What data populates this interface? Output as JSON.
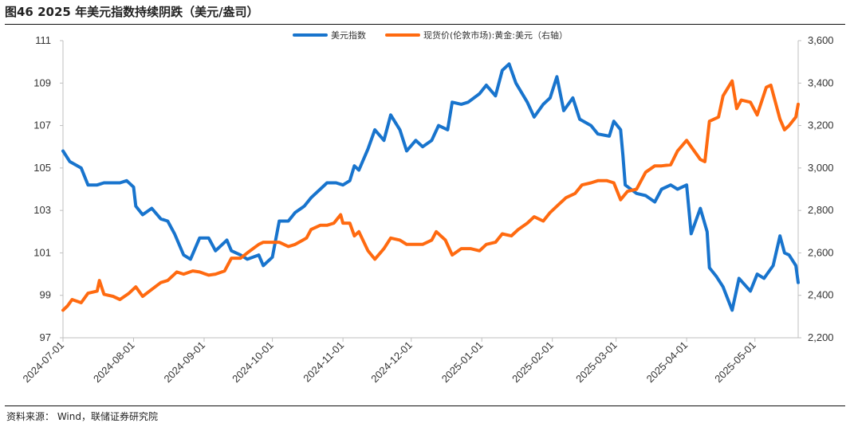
{
  "figure": {
    "title": "图46 2025 年美元指数持续阴跌（美元/盎司）",
    "source": "资料来源：  Wind，联储证券研究院"
  },
  "chart_data": {
    "type": "line",
    "title": "图46 2025 年美元指数持续阴跌（美元/盎司）",
    "legend_position": "top-center",
    "x_range": [
      "2024-07-01",
      "2025-05-20"
    ],
    "x_ticks": [
      "2024-07-01",
      "2024-08-01",
      "2024-09-01",
      "2024-10-01",
      "2024-11-01",
      "2024-12-01",
      "2025-01-01",
      "2025-02-01",
      "2025-03-01",
      "2025-04-01",
      "2025-05-01"
    ],
    "y_left": {
      "min": 97,
      "max": 111,
      "ticks": [
        "97",
        "99",
        "101",
        "103",
        "105",
        "107",
        "109",
        "111"
      ]
    },
    "y_right": {
      "min": 2200,
      "max": 3600,
      "ticks": [
        "2,200",
        "2,400",
        "2,600",
        "2,800",
        "3,000",
        "3,200",
        "3,400",
        "3,600"
      ]
    },
    "series": [
      {
        "name": "美元指数",
        "axis": "left",
        "color": "#1874CD",
        "points": [
          [
            "2024-07-01",
            105.8
          ],
          [
            "2024-07-04",
            105.3
          ],
          [
            "2024-07-09",
            105.0
          ],
          [
            "2024-07-12",
            104.2
          ],
          [
            "2024-07-16",
            104.2
          ],
          [
            "2024-07-19",
            104.3
          ],
          [
            "2024-07-22",
            104.3
          ],
          [
            "2024-07-26",
            104.3
          ],
          [
            "2024-07-29",
            104.4
          ],
          [
            "2024-08-01",
            104.1
          ],
          [
            "2024-08-02",
            103.2
          ],
          [
            "2024-08-05",
            102.8
          ],
          [
            "2024-08-09",
            103.1
          ],
          [
            "2024-08-13",
            102.6
          ],
          [
            "2024-08-16",
            102.5
          ],
          [
            "2024-08-19",
            101.9
          ],
          [
            "2024-08-23",
            100.9
          ],
          [
            "2024-08-26",
            100.7
          ],
          [
            "2024-08-30",
            101.7
          ],
          [
            "2024-09-03",
            101.7
          ],
          [
            "2024-09-06",
            101.1
          ],
          [
            "2024-09-11",
            101.6
          ],
          [
            "2024-09-13",
            101.1
          ],
          [
            "2024-09-17",
            100.9
          ],
          [
            "2024-09-20",
            100.7
          ],
          [
            "2024-09-25",
            100.9
          ],
          [
            "2024-09-27",
            100.4
          ],
          [
            "2024-10-01",
            100.8
          ],
          [
            "2024-10-04",
            102.5
          ],
          [
            "2024-10-08",
            102.5
          ],
          [
            "2024-10-11",
            102.9
          ],
          [
            "2024-10-15",
            103.2
          ],
          [
            "2024-10-18",
            103.6
          ],
          [
            "2024-10-22",
            104.0
          ],
          [
            "2024-10-25",
            104.3
          ],
          [
            "2024-10-29",
            104.3
          ],
          [
            "2024-11-01",
            104.2
          ],
          [
            "2024-11-04",
            104.4
          ],
          [
            "2024-11-06",
            105.1
          ],
          [
            "2024-11-08",
            104.9
          ],
          [
            "2024-11-12",
            105.9
          ],
          [
            "2024-11-15",
            106.8
          ],
          [
            "2024-11-19",
            106.3
          ],
          [
            "2024-11-22",
            107.5
          ],
          [
            "2024-11-26",
            106.8
          ],
          [
            "2024-11-29",
            105.8
          ],
          [
            "2024-12-03",
            106.3
          ],
          [
            "2024-12-06",
            106.0
          ],
          [
            "2024-12-10",
            106.3
          ],
          [
            "2024-12-13",
            107.0
          ],
          [
            "2024-12-17",
            106.8
          ],
          [
            "2024-12-19",
            108.1
          ],
          [
            "2024-12-23",
            108.0
          ],
          [
            "2024-12-26",
            108.1
          ],
          [
            "2024-12-31",
            108.5
          ],
          [
            "2025-01-03",
            108.9
          ],
          [
            "2025-01-07",
            108.4
          ],
          [
            "2025-01-10",
            109.6
          ],
          [
            "2025-01-13",
            109.9
          ],
          [
            "2025-01-16",
            109.0
          ],
          [
            "2025-01-21",
            108.1
          ],
          [
            "2025-01-24",
            107.4
          ],
          [
            "2025-01-28",
            108.0
          ],
          [
            "2025-01-31",
            108.3
          ],
          [
            "2025-02-03",
            109.3
          ],
          [
            "2025-02-06",
            107.7
          ],
          [
            "2025-02-10",
            108.3
          ],
          [
            "2025-02-13",
            107.3
          ],
          [
            "2025-02-18",
            107.0
          ],
          [
            "2025-02-21",
            106.6
          ],
          [
            "2025-02-26",
            106.5
          ],
          [
            "2025-02-28",
            107.2
          ],
          [
            "2025-03-03",
            106.8
          ],
          [
            "2025-03-04",
            105.6
          ],
          [
            "2025-03-05",
            104.2
          ],
          [
            "2025-03-10",
            103.8
          ],
          [
            "2025-03-14",
            103.7
          ],
          [
            "2025-03-18",
            103.4
          ],
          [
            "2025-03-21",
            104.0
          ],
          [
            "2025-03-25",
            104.2
          ],
          [
            "2025-03-28",
            104.0
          ],
          [
            "2025-04-01",
            104.2
          ],
          [
            "2025-04-03",
            101.9
          ],
          [
            "2025-04-07",
            103.1
          ],
          [
            "2025-04-10",
            102.0
          ],
          [
            "2025-04-11",
            100.3
          ],
          [
            "2025-04-14",
            99.9
          ],
          [
            "2025-04-17",
            99.4
          ],
          [
            "2025-04-21",
            98.3
          ],
          [
            "2025-04-24",
            99.8
          ],
          [
            "2025-04-29",
            99.2
          ],
          [
            "2025-05-02",
            100.0
          ],
          [
            "2025-05-05",
            99.8
          ],
          [
            "2025-05-09",
            100.4
          ],
          [
            "2025-05-12",
            101.8
          ],
          [
            "2025-05-14",
            101.0
          ],
          [
            "2025-05-16",
            100.9
          ],
          [
            "2025-05-19",
            100.4
          ],
          [
            "2025-05-20",
            99.6
          ]
        ]
      },
      {
        "name": "现货价(伦敦市场):黄金:美元（右轴）",
        "axis": "right",
        "color": "#FF6A10",
        "points": [
          [
            "2024-07-01",
            2330
          ],
          [
            "2024-07-03",
            2350
          ],
          [
            "2024-07-05",
            2380
          ],
          [
            "2024-07-09",
            2365
          ],
          [
            "2024-07-12",
            2410
          ],
          [
            "2024-07-16",
            2420
          ],
          [
            "2024-07-17",
            2470
          ],
          [
            "2024-07-19",
            2405
          ],
          [
            "2024-07-23",
            2395
          ],
          [
            "2024-07-26",
            2380
          ],
          [
            "2024-07-30",
            2410
          ],
          [
            "2024-08-02",
            2440
          ],
          [
            "2024-08-05",
            2395
          ],
          [
            "2024-08-08",
            2420
          ],
          [
            "2024-08-13",
            2460
          ],
          [
            "2024-08-16",
            2470
          ],
          [
            "2024-08-20",
            2510
          ],
          [
            "2024-08-23",
            2500
          ],
          [
            "2024-08-27",
            2515
          ],
          [
            "2024-08-30",
            2510
          ],
          [
            "2024-09-03",
            2495
          ],
          [
            "2024-09-06",
            2500
          ],
          [
            "2024-09-10",
            2515
          ],
          [
            "2024-09-13",
            2575
          ],
          [
            "2024-09-17",
            2575
          ],
          [
            "2024-09-20",
            2600
          ],
          [
            "2024-09-25",
            2640
          ],
          [
            "2024-09-27",
            2650
          ],
          [
            "2024-10-01",
            2650
          ],
          [
            "2024-10-04",
            2650
          ],
          [
            "2024-10-08",
            2630
          ],
          [
            "2024-10-11",
            2640
          ],
          [
            "2024-10-16",
            2670
          ],
          [
            "2024-10-18",
            2710
          ],
          [
            "2024-10-22",
            2730
          ],
          [
            "2024-10-25",
            2730
          ],
          [
            "2024-10-28",
            2740
          ],
          [
            "2024-10-31",
            2780
          ],
          [
            "2024-11-01",
            2740
          ],
          [
            "2024-11-04",
            2740
          ],
          [
            "2024-11-06",
            2680
          ],
          [
            "2024-11-08",
            2700
          ],
          [
            "2024-11-12",
            2610
          ],
          [
            "2024-11-15",
            2570
          ],
          [
            "2024-11-19",
            2620
          ],
          [
            "2024-11-22",
            2670
          ],
          [
            "2024-11-26",
            2660
          ],
          [
            "2024-11-29",
            2640
          ],
          [
            "2024-12-03",
            2640
          ],
          [
            "2024-12-06",
            2640
          ],
          [
            "2024-12-10",
            2660
          ],
          [
            "2024-12-12",
            2700
          ],
          [
            "2024-12-16",
            2660
          ],
          [
            "2024-12-19",
            2590
          ],
          [
            "2024-12-23",
            2620
          ],
          [
            "2024-12-27",
            2620
          ],
          [
            "2024-12-31",
            2610
          ],
          [
            "2025-01-03",
            2640
          ],
          [
            "2025-01-07",
            2650
          ],
          [
            "2025-01-10",
            2690
          ],
          [
            "2025-01-14",
            2680
          ],
          [
            "2025-01-17",
            2710
          ],
          [
            "2025-01-21",
            2740
          ],
          [
            "2025-01-24",
            2770
          ],
          [
            "2025-01-28",
            2750
          ],
          [
            "2025-01-31",
            2790
          ],
          [
            "2025-02-04",
            2830
          ],
          [
            "2025-02-07",
            2860
          ],
          [
            "2025-02-11",
            2880
          ],
          [
            "2025-02-14",
            2920
          ],
          [
            "2025-02-18",
            2930
          ],
          [
            "2025-02-21",
            2940
          ],
          [
            "2025-02-25",
            2940
          ],
          [
            "2025-02-28",
            2930
          ],
          [
            "2025-03-03",
            2850
          ],
          [
            "2025-03-06",
            2890
          ],
          [
            "2025-03-10",
            2900
          ],
          [
            "2025-03-14",
            2980
          ],
          [
            "2025-03-18",
            3010
          ],
          [
            "2025-03-21",
            3010
          ],
          [
            "2025-03-25",
            3015
          ],
          [
            "2025-03-28",
            3080
          ],
          [
            "2025-04-01",
            3130
          ],
          [
            "2025-04-03",
            3100
          ],
          [
            "2025-04-07",
            3040
          ],
          [
            "2025-04-09",
            3030
          ],
          [
            "2025-04-11",
            3220
          ],
          [
            "2025-04-15",
            3240
          ],
          [
            "2025-04-17",
            3340
          ],
          [
            "2025-04-21",
            3410
          ],
          [
            "2025-04-23",
            3280
          ],
          [
            "2025-04-25",
            3320
          ],
          [
            "2025-04-29",
            3310
          ],
          [
            "2025-05-02",
            3250
          ],
          [
            "2025-05-06",
            3380
          ],
          [
            "2025-05-08",
            3390
          ],
          [
            "2025-05-12",
            3230
          ],
          [
            "2025-05-14",
            3180
          ],
          [
            "2025-05-16",
            3200
          ],
          [
            "2025-05-19",
            3240
          ],
          [
            "2025-05-20",
            3300
          ]
        ]
      }
    ]
  }
}
